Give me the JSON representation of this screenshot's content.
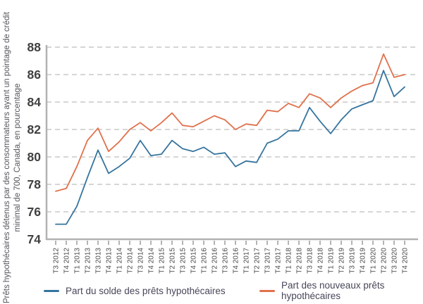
{
  "chart_data": {
    "type": "line",
    "title": "",
    "ylabel_line1": "Prêts hypothécaires détenus par des consommateurs ayant un pointage de crédit",
    "ylabel_line2": "minimal de 700, Canada, en pourcentage",
    "xlabel": "",
    "categories": [
      "T3 2012",
      "T4 2012",
      "T1 2013",
      "T2 2013",
      "T3 2013",
      "T4 2013",
      "T1 2014",
      "T2 2014",
      "T3 2014",
      "T4 2014",
      "T1 2015",
      "T2 2015",
      "T3 2015",
      "T4 2015",
      "T1 2016",
      "T2 2016",
      "T3 2016",
      "T4 2016",
      "T1 2017",
      "T2 2017",
      "T3 2017",
      "T4 2017",
      "T1 2018",
      "T2 2018",
      "T3 2018",
      "T4 2018",
      "T1 2019",
      "T2 2019",
      "T3 2019",
      "T4 2019",
      "T1 2020",
      "T2 2020",
      "T3 2020",
      "T4 2020"
    ],
    "series": [
      {
        "name": "Part du solde des prêts hypothécaires",
        "color": "#35749E",
        "values": [
          75.1,
          75.1,
          76.4,
          78.5,
          80.5,
          78.8,
          79.3,
          79.9,
          81.2,
          80.1,
          80.2,
          81.2,
          80.6,
          80.4,
          80.7,
          80.2,
          80.3,
          79.3,
          79.7,
          79.6,
          81.0,
          81.3,
          81.9,
          81.9,
          83.6,
          82.6,
          81.7,
          82.7,
          83.5,
          83.8,
          84.1,
          86.3,
          84.4,
          85.1
        ]
      },
      {
        "name": "Part des nouveaux prêts hypothécaires",
        "color": "#E0714C",
        "values": [
          77.5,
          77.7,
          79.3,
          81.2,
          82.1,
          80.4,
          81.1,
          82.0,
          82.5,
          81.9,
          82.5,
          83.2,
          82.3,
          82.2,
          82.6,
          83.0,
          82.7,
          82.0,
          82.4,
          82.3,
          83.4,
          83.3,
          83.9,
          83.6,
          84.6,
          84.3,
          83.6,
          84.3,
          84.8,
          85.2,
          85.4,
          87.5,
          85.8,
          86.0
        ]
      }
    ],
    "ylim": [
      74,
      88
    ],
    "ytick_step": 2,
    "yticks": [
      74,
      76,
      78,
      80,
      82,
      84,
      86,
      88
    ],
    "grid": "horizontal-dashed",
    "legend_position": "bottom"
  },
  "style_colors": {
    "grid": "#c9c9c9",
    "axis": "#b2b2b2",
    "tick": "#9a9a9a",
    "tick_label": "#414141",
    "x_label": "#4a4a4a"
  }
}
